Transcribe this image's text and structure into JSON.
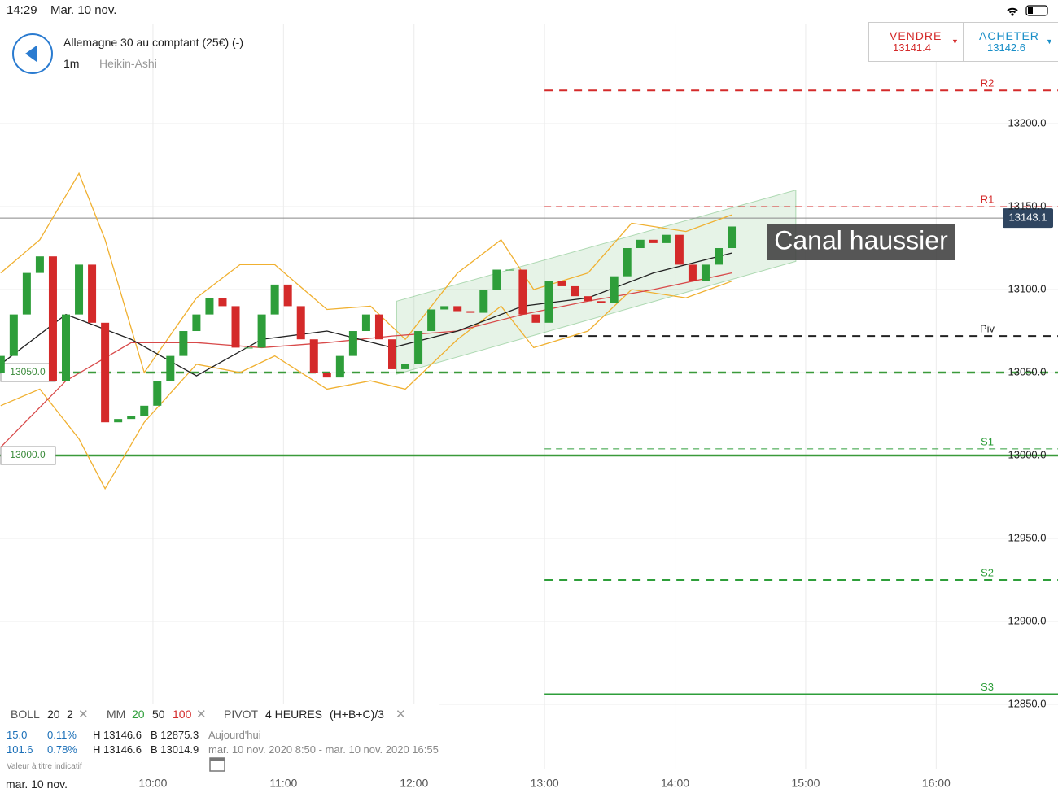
{
  "status_bar": {
    "time": "14:29",
    "date": "Mar. 10 nov."
  },
  "header": {
    "instrument": "Allemagne 30 au comptant (25€) (-)",
    "interval": "1m",
    "chart_style": "Heikin-Ashi"
  },
  "trade": {
    "sell_label": "VENDRE",
    "sell_price": "13141.4",
    "buy_label": "ACHETER",
    "buy_price": "13142.6"
  },
  "indicators": {
    "boll": "BOLL",
    "boll_period": "20",
    "boll_dev": "2",
    "mm": "MM",
    "mm_fast": "20",
    "mm_mid": "50",
    "mm_slow": "100",
    "pivot": "PIVOT",
    "pivot_period": "4 HEURES",
    "pivot_formula": "(H+B+C)/3"
  },
  "info": {
    "row1": [
      "15.0",
      "0.11%",
      "H 13146.6",
      "B 12875.3",
      "Aujourd'hui"
    ],
    "row2": [
      "101.6",
      "0.78%",
      "H 13146.6",
      "B 13014.9",
      "mar. 10 nov. 2020 8:50 - mar. 10 nov. 2020 16:55"
    ],
    "note": "Valeur à titre indicatif",
    "axis_date": "mar. 10 nov."
  },
  "chart_data": {
    "type": "candlestick",
    "annotation": "Canal haussier",
    "xlim": [
      529.7,
      989.8
    ],
    "ylim": [
      12811.3,
      13259.8
    ],
    "xticks": [
      {
        "value": 600,
        "label": "10:00"
      },
      {
        "value": 660,
        "label": "11:00"
      },
      {
        "value": 720,
        "label": "12:00"
      },
      {
        "value": 780,
        "label": "13:00"
      },
      {
        "value": 840,
        "label": "14:00"
      },
      {
        "value": 900,
        "label": "15:00"
      },
      {
        "value": 960,
        "label": "16:00"
      }
    ],
    "yticks": [
      {
        "value": 12850,
        "label": "12850.0"
      },
      {
        "value": 12900,
        "label": "12900.0"
      },
      {
        "value": 12950,
        "label": "12950.0"
      },
      {
        "value": 13000,
        "label": "13000.0"
      },
      {
        "value": 13050,
        "label": "13050.0"
      },
      {
        "value": 13100,
        "label": "13100.0"
      },
      {
        "value": 13150,
        "label": "13150.0"
      },
      {
        "value": 13200,
        "label": "13200.0"
      }
    ],
    "grid": true,
    "up_color": "#2e9e3a",
    "down_color": "#d42a2a",
    "x": [
      530,
      536,
      542,
      548,
      554,
      560,
      566,
      572,
      578,
      584,
      590,
      596,
      602,
      608,
      614,
      620,
      626,
      632,
      638,
      644,
      650,
      656,
      662,
      668,
      674,
      680,
      686,
      692,
      698,
      704,
      710,
      716,
      722,
      728,
      734,
      740,
      746,
      752,
      758,
      764,
      770,
      776,
      782,
      788,
      794,
      800,
      806,
      812,
      818,
      824,
      830,
      836,
      842,
      848,
      854,
      860,
      866
    ],
    "open": [
      13050,
      13060,
      13085,
      13110,
      13120,
      13045,
      13085,
      13115,
      13080,
      13020,
      13022,
      13024,
      13030,
      13045,
      13060,
      13075,
      13085,
      13095,
      13090,
      13065,
      13065,
      13085,
      13103,
      13090,
      13070,
      13050,
      13047,
      13060,
      13075,
      13085,
      13070,
      13052,
      13055,
      13075,
      13088,
      13090,
      13087,
      13086,
      13100,
      13112,
      13112,
      13085,
      13080,
      13105,
      13102,
      13096,
      13093,
      13092,
      13108,
      13125,
      13130,
      13128,
      13133,
      13115,
      13105,
      13115,
      13125
    ],
    "close": [
      13060,
      13085,
      13110,
      13120,
      13045,
      13085,
      13115,
      13080,
      13020,
      13022,
      13024,
      13030,
      13045,
      13060,
      13075,
      13085,
      13095,
      13090,
      13065,
      13065,
      13085,
      13103,
      13090,
      13070,
      13050,
      13047,
      13060,
      13075,
      13085,
      13070,
      13052,
      13055,
      13075,
      13088,
      13090,
      13087,
      13086,
      13100,
      13112,
      13112,
      13085,
      13080,
      13105,
      13102,
      13096,
      13093,
      13092,
      13108,
      13125,
      13130,
      13128,
      13133,
      13115,
      13105,
      13115,
      13125,
      13138
    ],
    "lines": [
      {
        "color": "#f0b030",
        "x": [
          530,
          548,
          566,
          578,
          596,
          620,
          640,
          656,
          680,
          700,
          716,
          740,
          760,
          775,
          800,
          820,
          845,
          866
        ],
        "values": [
          13110,
          13130,
          13170,
          13130,
          13050,
          13095,
          13115,
          13115,
          13088,
          13090,
          13070,
          13110,
          13130,
          13100,
          13110,
          13140,
          13135,
          13145
        ]
      },
      {
        "color": "#f0b030",
        "x": [
          530,
          548,
          566,
          578,
          596,
          620,
          640,
          656,
          680,
          700,
          716,
          740,
          760,
          775,
          800,
          820,
          845,
          866
        ],
        "values": [
          13030,
          13040,
          13010,
          12980,
          13020,
          13055,
          13050,
          13060,
          13040,
          13045,
          13040,
          13070,
          13090,
          13065,
          13075,
          13100,
          13095,
          13105
        ]
      },
      {
        "color": "#d84a4a",
        "x": [
          530,
          560,
          590,
          620,
          650,
          680,
          710,
          740,
          770,
          800,
          830,
          866
        ],
        "values": [
          13005,
          13045,
          13068,
          13068,
          13065,
          13068,
          13072,
          13075,
          13085,
          13093,
          13100,
          13110
        ]
      },
      {
        "color": "#222222",
        "x": [
          530,
          560,
          590,
          620,
          650,
          680,
          710,
          740,
          770,
          800,
          830,
          866
        ],
        "values": [
          13055,
          13085,
          13070,
          13048,
          13070,
          13075,
          13065,
          13075,
          13090,
          13095,
          13110,
          13122
        ]
      }
    ],
    "channel": {
      "x": [
        712,
        895.5
      ],
      "upper": [
        13093,
        13160
      ],
      "lower": [
        13049,
        13117
      ],
      "color": "#2e9e3a"
    },
    "pivot_start": 780,
    "levels": [
      {
        "name": "R2",
        "value": 13220,
        "color": "#d42a2a",
        "style": "dashed"
      },
      {
        "name": "R1",
        "value": 13150,
        "color": "#d42a2a",
        "style": "thin"
      },
      {
        "name": "Piv",
        "value": 13072,
        "color": "#222222",
        "style": "dashed"
      },
      {
        "name": "S1",
        "value": 13004,
        "color": "#2e9e3a",
        "style": "thin"
      },
      {
        "name": "S2",
        "value": 12925,
        "color": "#2e9e3a",
        "style": "dashed"
      },
      {
        "name": "S3",
        "value": 12856,
        "color": "#2e9e3a",
        "style": "solid"
      }
    ],
    "alerts": [
      {
        "value": 13050,
        "label": "13050.0",
        "style": "dashed"
      },
      {
        "value": 13000,
        "label": "13000.0",
        "style": "solid"
      }
    ],
    "current": {
      "value": 13143.1,
      "label": "13143.1"
    }
  }
}
